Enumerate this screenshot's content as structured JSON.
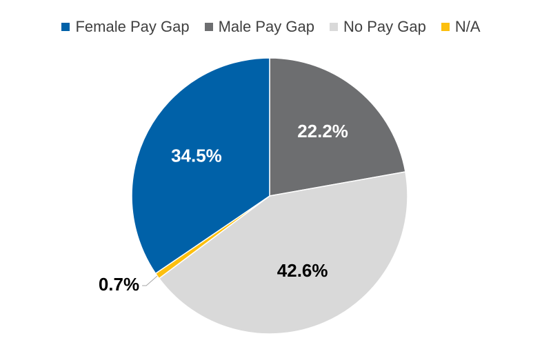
{
  "chart_data": {
    "type": "pie",
    "title": "",
    "legend_position": "top",
    "slices": [
      {
        "label": "Male Pay Gap",
        "value": 22.2,
        "display": "22.2%",
        "color": "#6d6e70",
        "label_color": "#ffffff"
      },
      {
        "label": "No Pay Gap",
        "value": 42.6,
        "display": "42.6%",
        "color": "#d9d9d9",
        "label_color": "#000000"
      },
      {
        "label": "N/A",
        "value": 0.7,
        "display": "0.7%",
        "color": "#fcbf0e",
        "label_color": "#000000"
      },
      {
        "label": "Female Pay Gap",
        "value": 34.5,
        "display": "34.5%",
        "color": "#0061a8",
        "label_color": "#ffffff"
      }
    ],
    "legend": [
      {
        "label": "Female Pay Gap",
        "color": "#0061a8"
      },
      {
        "label": "Male Pay Gap",
        "color": "#6d6e70"
      },
      {
        "label": "No Pay Gap",
        "color": "#d9d9d9"
      },
      {
        "label": "N/A",
        "color": "#fcbf0e"
      }
    ]
  }
}
